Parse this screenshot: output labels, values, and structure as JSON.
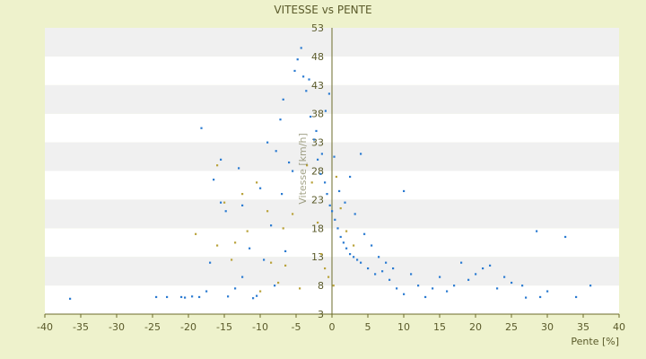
{
  "chart_data": {
    "type": "scatter",
    "title": "VITESSE vs PENTE",
    "xlabel": "Pente [%]",
    "ylabel": "Vitesse [km/h]",
    "xlim": [
      -40,
      40
    ],
    "ylim": [
      3,
      53
    ],
    "x_ticks": [
      "-40",
      "-35",
      "-30",
      "-25",
      "-20",
      "-15",
      "-10",
      "-5",
      "0",
      "5",
      "10",
      "15",
      "20",
      "25",
      "30",
      "35",
      "40"
    ],
    "y_ticks": [
      "3",
      "8",
      "13",
      "18",
      "23",
      "28",
      "33",
      "38",
      "43",
      "48",
      "53"
    ],
    "grid": "horizontal bands",
    "colors": {
      "background": "#eef2cc",
      "plot_band_light": "#ffffff",
      "plot_band_dark": "#f0f0f0",
      "points": "#2b7bd1",
      "points_alt": "#b9a23a",
      "axis": "#6b6b2a",
      "text": "#5a5a2a"
    },
    "series": [
      {
        "points": [
          [
            -36.5,
            5.7
          ],
          [
            -24.5,
            6.0
          ],
          [
            -23,
            6.0
          ],
          [
            -21,
            6.0
          ],
          [
            -20.5,
            5.9
          ],
          [
            -19.5,
            6.1
          ],
          [
            -18.5,
            6.0
          ],
          [
            -17.5,
            7.0
          ],
          [
            -18.2,
            35.5
          ],
          [
            -16.5,
            26.5
          ],
          [
            -15.5,
            22.5
          ],
          [
            -14.8,
            21.0
          ],
          [
            -14.5,
            6.1
          ],
          [
            -13.5,
            7.5
          ],
          [
            -12.5,
            22.0
          ],
          [
            -11,
            5.8
          ],
          [
            -10.5,
            6.2
          ],
          [
            -9.5,
            12.5
          ],
          [
            -8.5,
            18.5
          ],
          [
            -7.8,
            31.5
          ],
          [
            -7.2,
            37.0
          ],
          [
            -6.8,
            40.5
          ],
          [
            -6.0,
            29.5
          ],
          [
            -5.5,
            28.0
          ],
          [
            -5.2,
            45.5
          ],
          [
            -4.8,
            47.5
          ],
          [
            -4.3,
            49.5
          ],
          [
            -4.0,
            44.5
          ],
          [
            -3.6,
            42.0
          ],
          [
            -3.0,
            37.5
          ],
          [
            -2.5,
            33.5
          ],
          [
            -2.0,
            30.0
          ],
          [
            -1.6,
            27.5
          ],
          [
            -1.0,
            26.0
          ],
          [
            -0.7,
            24.0
          ],
          [
            -0.3,
            22.0
          ],
          [
            0.0,
            21.0
          ],
          [
            0.4,
            19.5
          ],
          [
            0.8,
            18.0
          ],
          [
            1.2,
            16.5
          ],
          [
            1.6,
            15.5
          ],
          [
            2.0,
            14.5
          ],
          [
            2.5,
            13.5
          ],
          [
            3.0,
            13.0
          ],
          [
            3.5,
            12.5
          ],
          [
            4.0,
            12.0
          ],
          [
            5.0,
            11.0
          ],
          [
            6.0,
            10.0
          ],
          [
            7.0,
            10.5
          ],
          [
            8.0,
            9.0
          ],
          [
            9.0,
            7.5
          ],
          [
            10.0,
            6.5
          ],
          [
            11.0,
            10.0
          ],
          [
            12.0,
            8.0
          ],
          [
            13.0,
            6.0
          ],
          [
            14.0,
            7.5
          ],
          [
            15.0,
            9.5
          ],
          [
            16.0,
            7.0
          ],
          [
            17.0,
            8.0
          ],
          [
            18.0,
            12.0
          ],
          [
            19.0,
            9.0
          ],
          [
            20.0,
            10.0
          ],
          [
            21.0,
            11.0
          ],
          [
            22.0,
            11.5
          ],
          [
            23.0,
            7.5
          ],
          [
            24.0,
            9.5
          ],
          [
            25.0,
            8.5
          ],
          [
            26.5,
            8.0
          ],
          [
            27.0,
            5.9
          ],
          [
            28.5,
            17.5
          ],
          [
            29.0,
            6.0
          ],
          [
            30.0,
            7.0
          ],
          [
            32.5,
            16.5
          ],
          [
            34.0,
            6.0
          ],
          [
            36.0,
            8.0
          ],
          [
            -3.2,
            44.0
          ],
          [
            -2.2,
            35.0
          ],
          [
            -1.4,
            31.0
          ],
          [
            -0.9,
            38.5
          ],
          [
            -0.4,
            41.5
          ],
          [
            0.3,
            30.5
          ],
          [
            1.0,
            24.5
          ],
          [
            1.8,
            22.5
          ],
          [
            3.2,
            20.5
          ],
          [
            4.5,
            17.0
          ],
          [
            5.5,
            15.0
          ],
          [
            6.5,
            13.0
          ],
          [
            7.5,
            12.0
          ],
          [
            8.5,
            11.0
          ],
          [
            10.0,
            24.5
          ],
          [
            4.0,
            31.0
          ],
          [
            2.5,
            27.0
          ],
          [
            -6.5,
            14.0
          ],
          [
            -8.0,
            8.0
          ],
          [
            -11.5,
            14.5
          ],
          [
            -12.5,
            9.5
          ],
          [
            -15.5,
            30.0
          ],
          [
            -17.0,
            12.0
          ],
          [
            -9.0,
            33.0
          ],
          [
            -7.0,
            24.0
          ],
          [
            -10.0,
            25.0
          ],
          [
            -13.0,
            28.5
          ]
        ]
      },
      {
        "points": [
          [
            -16,
            29.0
          ],
          [
            -15,
            22.5
          ],
          [
            -19,
            17.0
          ],
          [
            -16,
            15.0
          ],
          [
            -13.5,
            15.5
          ],
          [
            -12.5,
            24.0
          ],
          [
            -10.5,
            26.0
          ],
          [
            -10,
            7.0
          ],
          [
            -8.5,
            12.0
          ],
          [
            -7.5,
            8.5
          ],
          [
            -6.5,
            11.5
          ],
          [
            -4.5,
            7.5
          ],
          [
            -3.5,
            29.0
          ],
          [
            -2.8,
            26.0
          ],
          [
            -2.0,
            19.0
          ],
          [
            -1.5,
            13.5
          ],
          [
            -1.0,
            11.0
          ],
          [
            -0.5,
            9.5
          ],
          [
            0.2,
            8.0
          ],
          [
            0.6,
            27.0
          ],
          [
            1.2,
            21.5
          ],
          [
            2.0,
            17.5
          ],
          [
            3.0,
            15.0
          ],
          [
            -5.5,
            20.5
          ],
          [
            -6.8,
            18.0
          ],
          [
            -9.0,
            21.0
          ],
          [
            -11.8,
            17.5
          ],
          [
            -14.0,
            12.5
          ]
        ]
      }
    ]
  }
}
